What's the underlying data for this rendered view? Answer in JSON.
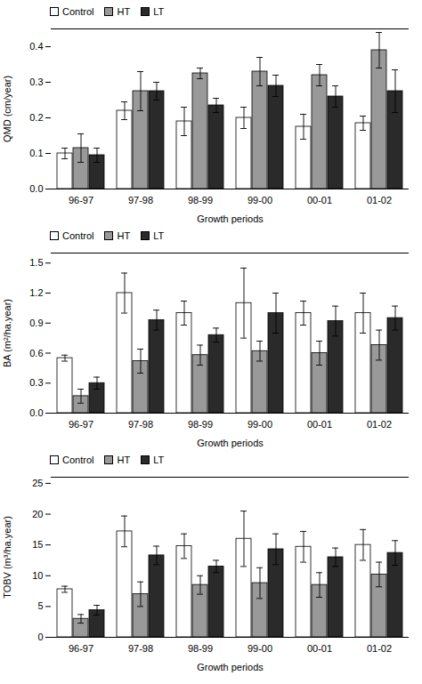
{
  "chart_data": [
    {
      "type": "bar",
      "categories": [
        "96-97",
        "97-98",
        "98-99",
        "99-00",
        "00-01",
        "01-02"
      ],
      "series": [
        {
          "name": "Control",
          "color": "#ffffff",
          "values": [
            0.1,
            0.22,
            0.19,
            0.2,
            0.175,
            0.185
          ],
          "errors": [
            0.015,
            0.025,
            0.04,
            0.03,
            0.035,
            0.02
          ]
        },
        {
          "name": "HT",
          "color": "#999999",
          "values": [
            0.115,
            0.275,
            0.325,
            0.33,
            0.32,
            0.39
          ],
          "errors": [
            0.04,
            0.055,
            0.015,
            0.04,
            0.03,
            0.05
          ]
        },
        {
          "name": "LT",
          "color": "#2a2a2a",
          "values": [
            0.095,
            0.275,
            0.235,
            0.29,
            0.26,
            0.275
          ],
          "errors": [
            0.02,
            0.025,
            0.02,
            0.03,
            0.03,
            0.06
          ]
        }
      ],
      "xlabel": "Growth periods",
      "ylabel": "QMD (cm/year)",
      "ylim": [
        0.0,
        0.45
      ],
      "yticks": [
        {
          "value": 0.0,
          "label": "0.0"
        },
        0.1,
        0.2,
        0.3,
        0.4
      ],
      "grid": false,
      "legend": "upper left"
    },
    {
      "type": "bar",
      "categories": [
        "96-97",
        "97-98",
        "98-99",
        "99-00",
        "00-01",
        "01-02"
      ],
      "series": [
        {
          "name": "Control",
          "color": "#ffffff",
          "values": [
            0.55,
            1.2,
            1.0,
            1.1,
            1.0,
            1.0
          ],
          "errors": [
            0.03,
            0.2,
            0.12,
            0.35,
            0.12,
            0.2
          ]
        },
        {
          "name": "HT",
          "color": "#999999",
          "values": [
            0.17,
            0.52,
            0.58,
            0.62,
            0.6,
            0.68
          ],
          "errors": [
            0.07,
            0.12,
            0.1,
            0.1,
            0.12,
            0.15
          ]
        },
        {
          "name": "LT",
          "color": "#2a2a2a",
          "values": [
            0.3,
            0.93,
            0.78,
            1.0,
            0.92,
            0.95
          ],
          "errors": [
            0.06,
            0.1,
            0.07,
            0.2,
            0.15,
            0.12
          ]
        }
      ],
      "xlabel": "Growth periods",
      "ylabel": "BA (m²/ha.year)",
      "ylim": [
        0.0,
        1.6
      ],
      "yticks": [
        {
          "value": 0.0,
          "label": "0.0"
        },
        0.3,
        0.6,
        0.9,
        1.2,
        1.5
      ],
      "grid": false,
      "legend": "upper left"
    },
    {
      "type": "bar",
      "categories": [
        "96-97",
        "97-98",
        "98-99",
        "99-00",
        "00-01",
        "01-02"
      ],
      "series": [
        {
          "name": "Control",
          "color": "#ffffff",
          "values": [
            7.8,
            17.2,
            14.8,
            16.0,
            14.7,
            15.0
          ],
          "errors": [
            0.5,
            2.5,
            2.0,
            4.5,
            2.5,
            2.5
          ]
        },
        {
          "name": "HT",
          "color": "#999999",
          "values": [
            3.0,
            7.0,
            8.5,
            8.8,
            8.5,
            10.2
          ],
          "errors": [
            0.7,
            2.0,
            1.5,
            2.5,
            2.0,
            2.0
          ]
        },
        {
          "name": "LT",
          "color": "#2a2a2a",
          "values": [
            4.4,
            13.3,
            11.5,
            14.3,
            13.0,
            13.7
          ],
          "errors": [
            0.8,
            1.5,
            1.0,
            2.5,
            1.5,
            2.0
          ]
        }
      ],
      "xlabel": "Growth periods",
      "ylabel": "TOBV (m³/ha.year)",
      "ylim": [
        0,
        26
      ],
      "yticks": [
        0,
        5,
        10,
        15,
        20,
        25
      ],
      "grid": false,
      "legend": "upper left"
    }
  ]
}
